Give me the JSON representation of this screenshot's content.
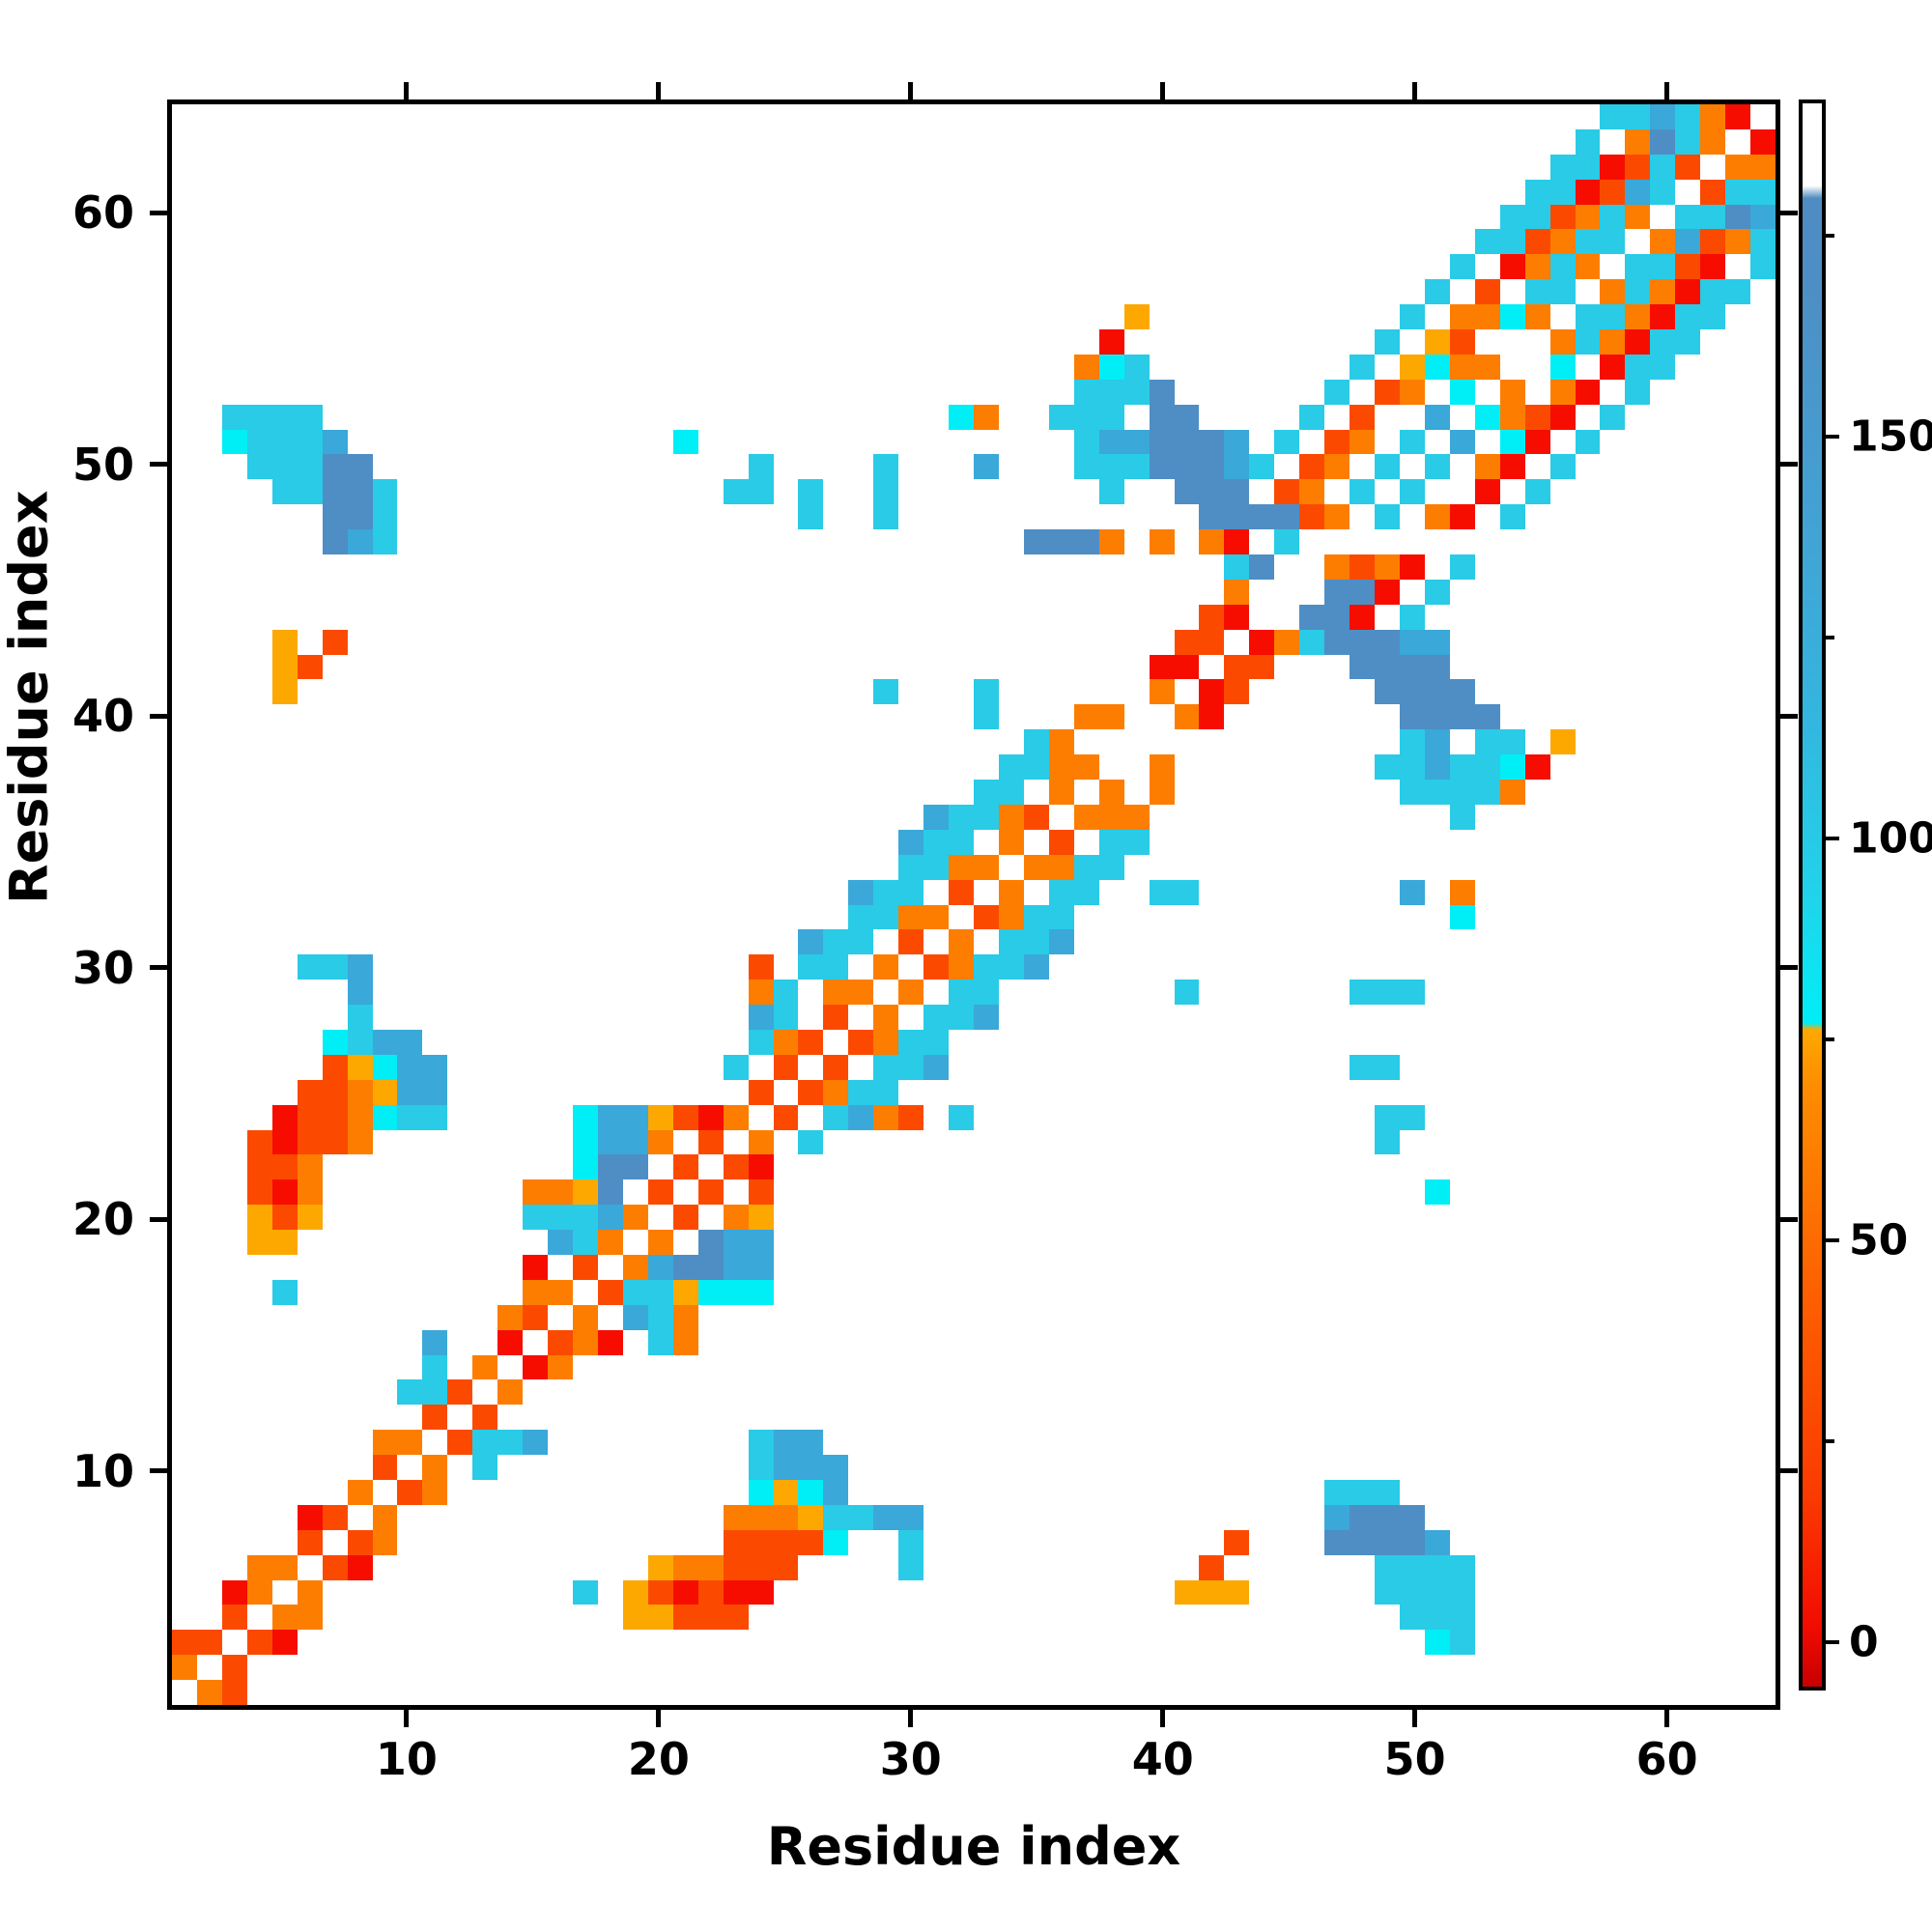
{
  "chart_data": {
    "type": "heatmap",
    "title": "",
    "xlabel": "Residue index",
    "ylabel": "Residue index",
    "x_range": [
      1,
      64
    ],
    "y_range": [
      1,
      64
    ],
    "x_ticks": [
      10,
      20,
      30,
      40,
      50,
      60
    ],
    "y_ticks": [
      10,
      20,
      30,
      40,
      50,
      60
    ],
    "grid": "off",
    "legend": "none",
    "description": "Symmetric residue-residue contact map; cell color encodes a value per the colorbar. '.' = empty (white). Rows listed top-first (residue 64) down to residue 1; each string is 64 columns (residue 1..64 left to right).",
    "value_legend_approx": {
      "r": 2,
      "O": 25,
      "o": 50,
      "a": 68,
      "c": 80,
      "C": 95,
      "m": 115,
      "B": 150
    },
    "palette": {
      "r": "#f60d00",
      "O": "#fb4a00",
      "o": "#fd7d00",
      "a": "#fda800",
      "c": "#00eef6",
      "C": "#29cbe6",
      "m": "#3aa8d8",
      "B": "#4e8ec4"
    },
    "colorbar": {
      "min": -6,
      "max": 192,
      "major_ticks": [
        0,
        50,
        100,
        150
      ],
      "minor_ticks": [
        25,
        75,
        125,
        175
      ],
      "gradient_bottom_to_top": [
        [
          0,
          "#c80000"
        ],
        [
          4,
          "#f20d00"
        ],
        [
          12,
          "#fb3a00"
        ],
        [
          25,
          "#fd6000"
        ],
        [
          38,
          "#fd8d00"
        ],
        [
          41.5,
          "#ffa800"
        ],
        [
          41.9,
          "#00eef6"
        ],
        [
          50,
          "#21d3ea"
        ],
        [
          62,
          "#35b4de"
        ],
        [
          75,
          "#44a0d2"
        ],
        [
          88,
          "#4d8fc5"
        ],
        [
          94,
          "#4e8cc2"
        ],
        [
          94.8,
          "#ffffff"
        ],
        [
          100,
          "#ffffff"
        ]
      ]
    },
    "rows": [
      ".........................................................CCmCor.",
      "........................................................C.oBCo.r",
      ".......................................................CCrOCO.oo",
      "......................................................CCrOmC.OCC",
      ".....................................................CCOoCo.CCBm",
      "....................................................CCOoCC.omOoC",
      "...................................................C.roCo.CCOr.C",
      "..................................................C.O.CC.oCorCC.",
      "......................................a..........C.ooco.CCorCC..",
      ".....................................r..........C.aO...oCorCC...",
      "....................................ocC........C.acoo..c.rCC....",
      "....................................CCCB......C.Oo.c.o.or.C.....",
      "..CCCC.........................co..CCC.BB....C.O..m.coOr.C......",
      "..cCCCm.............c...............CmmBBBm.C.Oo.C.m.cr.C.......",
      "...CCCBB...............C....C...m...CCCBBBmC.Oo.C.C.or.C........",
      "....CCBBC.............CC.C..C........C..BBB.Oo.C.C..r.C.........",
      "......BBC................C..C............BBBBOo.C.or.C..........",
      "......BmC.........................BBBo.o.or.C...................",
      "..........................................CB..oOor.C............",
      "..........................................o...BBr.C.............",
      ".........................................Or..BBr.C..............",
      "....a.O.................................OO.roCBBBmm.............",
      "....aO.................................rr.OO...BBBB.............",
      "....a.......................C...C......o.rO.....BBBB............",
      "................................C...oo..or.......BBBB...........",
      "..................................Co.............Cm.CC.a........",
      ".................................CCoo..o........CCmCCcr.........",
      "................................CC.o.o.o.........CCCCo..........",
      "..............................mCCoO.ooo............C............",
      ".............................mCC.o.O.CC.........................",
      ".............................CCoo.ooCC..........................",
      "...........................mCC.O.o.CC..CC........m.o............",
      "...........................CCoo.OoCC...............c............",
      ".........................mCC.O.o.CCm............................",
      ".....CCm...............O.CC.o.OoCCm.............................",
      ".......m...............oC.oo.o.CC.......C......CCC..............",
      ".......C...............mC.O.o.CCm...............................",
      "......cCmm.............CoO.OoCC.................................",
      "......Oacmm...........C.O.O.CCm................CC...............",
      ".....OOoamm............O.OoCC...................................",
      "....rOOocCC.....cmmaOro.O.CmoO.C................CC..............",
      "...OrOOo........cmmo.O.o.C......................C...............",
      "...OOo..........cBB.O.Or........................................",
      "...Oro........ooaB.O.O.O..........................c.............",
      "...aOa........CCCmo.O.oa........................................",
      "...aa..........mCo.o.Bmm........................................",
      "..............r.O.omBBmm........................................",
      "....C.........oo.OCCaccc........................................",
      ".............oO.o.mCo...........................................",
      "..........m..r.Oor.Co...........................................",
      "..........C.o.ro................................................",
      ".........CCO.o..................................................",
      "..........O.O...................................................",
      "........oo.OCCm........Cmm......................................",
      "........O.o.C..........Cmmm.....................................",
      ".......o.Oo............cacm...................CCC...............",
      ".....rO.o.............oooaCCmm................mBBB..............",
      ".....O.Oo.............OOOOc..C............O...BBBBm.............",
      "...oo.Or...........aooOOO....C...........O......CCCC............",
      "..ro.o..........C.aOrOrr................aaa.....CCCC............",
      "..O.oo............aaOOO..........................CCC............",
      "OO.Or.............................................cC............",
      "o.O..............................................................",
      ".oO.............................................................."
    ]
  }
}
